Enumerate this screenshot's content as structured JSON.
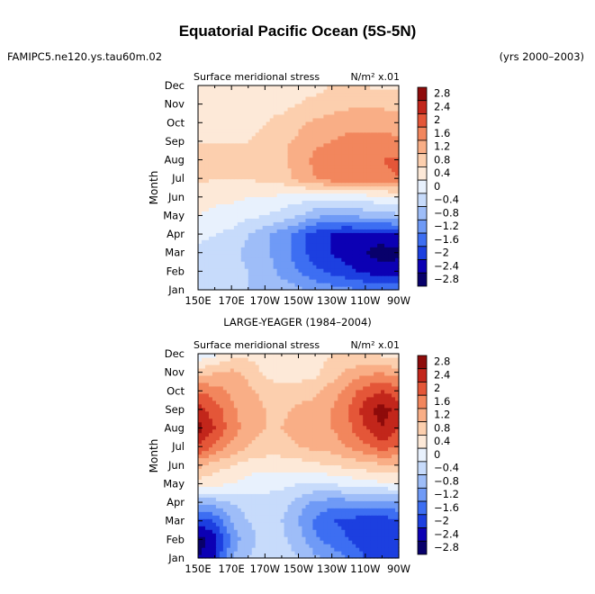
{
  "header": {
    "title": "Equatorial Pacific Ocean (5S-5N)",
    "case_name": "FAMIPC5.ne120.ys.tau60m.02",
    "years": "(yrs 2000–2003)"
  },
  "palette": [
    "#08006b",
    "#0c00b4",
    "#1c3fe0",
    "#3d6ef2",
    "#6f9af6",
    "#9ebdf8",
    "#c7dbfb",
    "#e8f1fd",
    "#fde9d8",
    "#fccfae",
    "#f9ae86",
    "#f2865d",
    "#e45638",
    "#c2261b",
    "#8e0b0a"
  ],
  "chart_data": [
    {
      "type": "heatmap",
      "panel_title": "",
      "left_label": "Surface meridional stress",
      "right_label": "N/m² x.01",
      "ylabel": "Month",
      "xlabel": "",
      "x_ticks": [
        "150E",
        "170E",
        "170W",
        "150W",
        "130W",
        "110W",
        "90W"
      ],
      "y_ticks": [
        "Jan",
        "Feb",
        "Mar",
        "Apr",
        "May",
        "Jun",
        "Jul",
        "Aug",
        "Sep",
        "Oct",
        "Nov",
        "Dec"
      ],
      "color_levels": [
        "2.8",
        "2.4",
        "2",
        "1.6",
        "1.2",
        "0.8",
        "0.4",
        "0",
        "−0.4",
        "−0.8",
        "−1.2",
        "−1.6",
        "−2",
        "−2.4",
        "−2.8"
      ],
      "x": [
        150,
        160,
        170,
        180,
        190,
        200,
        210,
        220,
        230,
        240,
        250,
        260,
        270
      ],
      "y": [
        "Jan",
        "Feb",
        "Mar",
        "Apr",
        "May",
        "Jun",
        "Jul",
        "Aug",
        "Sep",
        "Oct",
        "Nov",
        "Dec"
      ],
      "z": [
        [
          -0.6,
          -0.6,
          -0.7,
          -0.8,
          -0.9,
          -1.0,
          -1.1,
          -1.3,
          -1.4,
          -1.5,
          -1.6,
          -1.6,
          -1.6
        ],
        [
          -0.7,
          -0.7,
          -0.7,
          -0.8,
          -1.0,
          -1.3,
          -1.6,
          -1.9,
          -2.1,
          -2.3,
          -2.5,
          -2.6,
          -2.6
        ],
        [
          -0.5,
          -0.6,
          -0.7,
          -0.9,
          -1.1,
          -1.4,
          -1.8,
          -2.2,
          -2.4,
          -2.6,
          -2.8,
          -3.0,
          -2.9
        ],
        [
          -0.3,
          -0.4,
          -0.5,
          -0.8,
          -1.1,
          -1.4,
          -1.8,
          -2.2,
          -2.4,
          -2.5,
          -2.5,
          -2.6,
          -2.4
        ],
        [
          0.0,
          -0.1,
          -0.2,
          -0.3,
          -0.4,
          -0.6,
          -0.8,
          -1.1,
          -1.3,
          -1.2,
          -1.1,
          -1.0,
          -0.9
        ],
        [
          0.2,
          0.1,
          0.1,
          0.0,
          0.0,
          -0.1,
          -0.2,
          -0.3,
          -0.3,
          -0.2,
          -0.2,
          -0.1,
          -0.1
        ],
        [
          0.5,
          0.4,
          0.4,
          0.4,
          0.5,
          0.6,
          0.9,
          1.2,
          1.4,
          1.5,
          1.5,
          1.5,
          1.6
        ],
        [
          0.5,
          0.5,
          0.5,
          0.5,
          0.6,
          0.7,
          1.0,
          1.3,
          1.5,
          1.6,
          1.6,
          1.6,
          1.7
        ],
        [
          0.4,
          0.4,
          0.4,
          0.4,
          0.5,
          0.7,
          0.9,
          1.1,
          1.2,
          1.3,
          1.3,
          1.3,
          1.3
        ],
        [
          0.3,
          0.3,
          0.3,
          0.3,
          0.4,
          0.5,
          0.7,
          0.9,
          1.0,
          1.1,
          1.1,
          1.1,
          1.0
        ],
        [
          0.2,
          0.2,
          0.2,
          0.2,
          0.3,
          0.3,
          0.4,
          0.5,
          0.6,
          0.7,
          0.7,
          0.7,
          0.7
        ],
        [
          0.1,
          0.1,
          0.1,
          0.1,
          0.2,
          0.2,
          0.3,
          0.3,
          0.4,
          0.4,
          0.4,
          0.3,
          0.3
        ]
      ]
    },
    {
      "type": "heatmap",
      "panel_title": "LARGE-YEAGER (1984–2004)",
      "left_label": "Surface meridional stress",
      "right_label": "N/m² x.01",
      "ylabel": "Month",
      "xlabel": "",
      "x_ticks": [
        "150E",
        "170E",
        "170W",
        "150W",
        "130W",
        "110W",
        "90W"
      ],
      "y_ticks": [
        "Jan",
        "Feb",
        "Mar",
        "Apr",
        "May",
        "Jun",
        "Jul",
        "Aug",
        "Sep",
        "Oct",
        "Nov",
        "Dec"
      ],
      "color_levels": [
        "2.8",
        "2.4",
        "2",
        "1.6",
        "1.2",
        "0.8",
        "0.4",
        "0",
        "−0.4",
        "−0.8",
        "−1.2",
        "−1.6",
        "−2",
        "−2.4",
        "−2.8"
      ],
      "x": [
        150,
        160,
        170,
        180,
        190,
        200,
        210,
        220,
        230,
        240,
        250,
        260,
        270
      ],
      "y": [
        "Jan",
        "Feb",
        "Mar",
        "Apr",
        "May",
        "Jun",
        "Jul",
        "Aug",
        "Sep",
        "Oct",
        "Nov",
        "Dec"
      ],
      "z": [
        [
          -2.8,
          -2.4,
          -1.2,
          -0.8,
          -0.6,
          -0.6,
          -0.8,
          -1.1,
          -1.3,
          -1.6,
          -2.0,
          -2.2,
          -2.0
        ],
        [
          -3.0,
          -2.6,
          -1.5,
          -0.9,
          -0.7,
          -0.7,
          -1.0,
          -1.5,
          -1.8,
          -2.0,
          -2.2,
          -2.4,
          -2.2
        ],
        [
          -2.2,
          -2.0,
          -1.2,
          -0.8,
          -0.7,
          -0.8,
          -1.2,
          -1.7,
          -2.0,
          -2.1,
          -2.3,
          -2.3,
          -2.0
        ],
        [
          -1.2,
          -1.0,
          -0.8,
          -0.6,
          -0.5,
          -0.6,
          -1.0,
          -1.3,
          -1.4,
          -1.4,
          -1.4,
          -1.4,
          -1.3
        ],
        [
          0.2,
          0.1,
          0.0,
          -0.2,
          -0.3,
          -0.3,
          -0.4,
          -0.5,
          -0.4,
          -0.3,
          -0.2,
          -0.1,
          -0.1
        ],
        [
          0.9,
          0.6,
          0.4,
          0.2,
          0.2,
          0.2,
          0.2,
          0.3,
          0.4,
          0.5,
          0.6,
          0.7,
          0.7
        ],
        [
          2.0,
          1.5,
          1.1,
          0.8,
          0.6,
          0.6,
          0.8,
          0.9,
          1.0,
          1.2,
          1.5,
          1.8,
          1.6
        ],
        [
          2.6,
          2.0,
          1.4,
          1.0,
          0.8,
          0.8,
          1.0,
          1.2,
          1.2,
          1.5,
          2.0,
          2.4,
          2.0
        ],
        [
          2.2,
          1.8,
          1.3,
          1.0,
          0.8,
          0.7,
          0.9,
          1.0,
          1.2,
          1.6,
          2.2,
          2.6,
          2.2
        ],
        [
          1.6,
          1.4,
          1.1,
          0.9,
          0.7,
          0.6,
          0.6,
          0.7,
          1.0,
          1.4,
          1.8,
          2.0,
          1.8
        ],
        [
          0.6,
          0.8,
          0.9,
          0.7,
          0.3,
          0.1,
          0.2,
          0.3,
          0.6,
          0.9,
          1.1,
          1.2,
          1.0
        ],
        [
          -0.3,
          -0.1,
          0.2,
          0.3,
          0.2,
          0.1,
          0.2,
          0.3,
          0.4,
          0.4,
          0.4,
          0.3,
          0.2
        ]
      ]
    }
  ]
}
